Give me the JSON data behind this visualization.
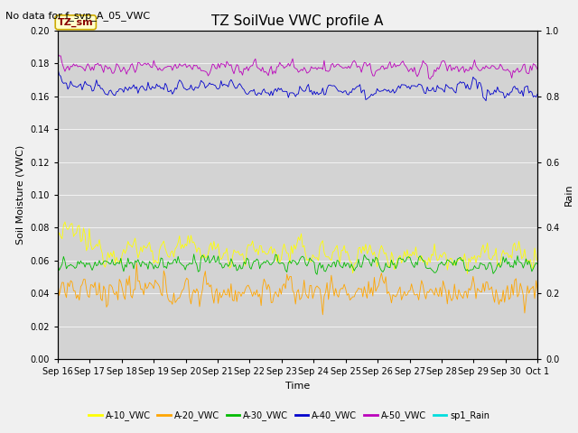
{
  "title": "TZ SoilVue VWC profile A",
  "no_data_text": "No data for f_svp_A_05_VWC",
  "annotation_text": "TZ_sm",
  "ylabel_left": "Soil Moisture (VWC)",
  "ylabel_right": "Rain",
  "xlabel": "Time",
  "ylim_left": [
    0.0,
    0.2
  ],
  "ylim_right": [
    0.0,
    1.0
  ],
  "plot_bg_color": "#d3d3d3",
  "fig_background": "#f0f0f0",
  "series_order": [
    "A-10_VWC",
    "A-20_VWC",
    "A-30_VWC",
    "A-40_VWC",
    "A-50_VWC",
    "sp1_Rain"
  ],
  "series": {
    "A-10_VWC": {
      "color": "#ffff00"
    },
    "A-20_VWC": {
      "color": "#ffa500"
    },
    "A-30_VWC": {
      "color": "#00bb00"
    },
    "A-40_VWC": {
      "color": "#0000cc"
    },
    "A-50_VWC": {
      "color": "#bb00bb"
    },
    "sp1_Rain": {
      "color": "#00dddd"
    }
  },
  "n_points": 336,
  "xtick_labels": [
    "Sep 16",
    "Sep 17",
    "Sep 18",
    "Sep 19",
    "Sep 20",
    "Sep 21",
    "Sep 22",
    "Sep 23",
    "Sep 24",
    "Sep 25",
    "Sep 26",
    "Sep 27",
    "Sep 28",
    "Sep 29",
    "Sep 30",
    "Oct 1"
  ],
  "yticks_left": [
    0.0,
    0.02,
    0.04,
    0.06,
    0.08,
    0.1,
    0.12,
    0.14,
    0.16,
    0.18,
    0.2
  ],
  "yticks_right": [
    0.0,
    0.2,
    0.4,
    0.6,
    0.8,
    1.0
  ],
  "title_fontsize": 11,
  "nodata_fontsize": 8,
  "annot_fontsize": 8,
  "label_fontsize": 8,
  "tick_fontsize": 7,
  "legend_fontsize": 7,
  "linewidth": 0.6
}
